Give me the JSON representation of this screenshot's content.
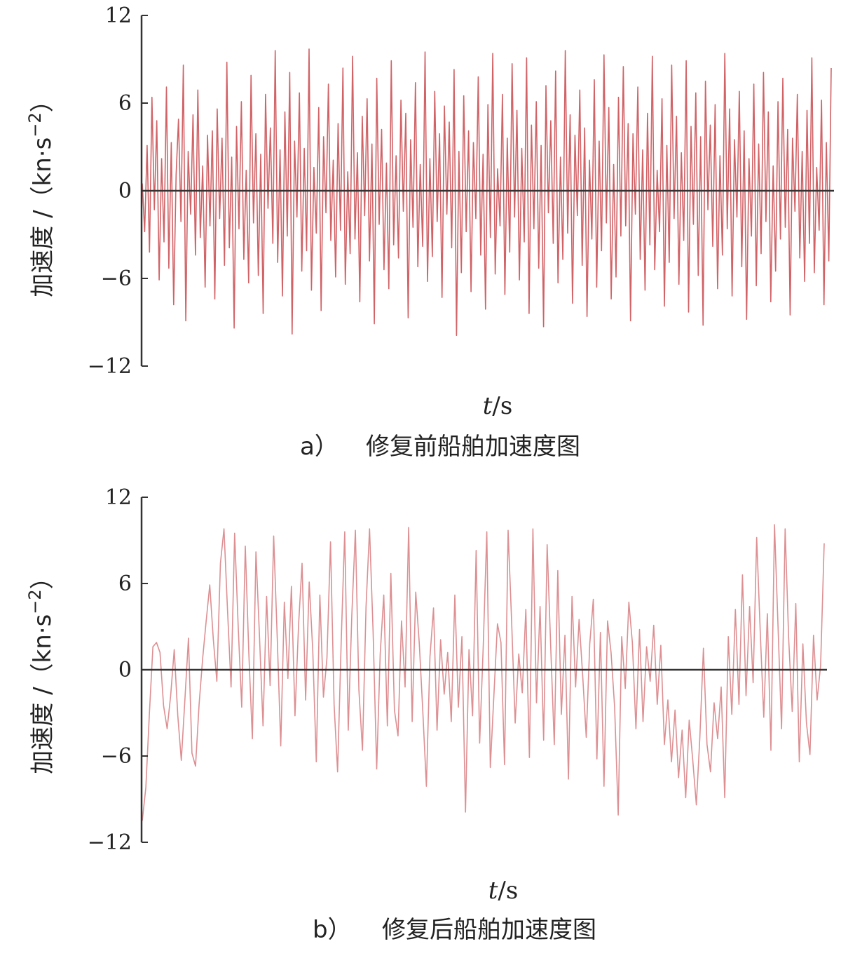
{
  "chart_data": [
    {
      "type": "line",
      "caption_letter": "a）",
      "caption_text": "修复前船舶加速度图",
      "ylabel_main": "加速度 /（kn·s",
      "ylabel_exp": "−2",
      "ylabel_close": "）",
      "xlabel_var": "t",
      "xlabel_unit": "/s",
      "ylim": [
        -12,
        12
      ],
      "yticks": [
        12,
        6,
        0,
        -6,
        -12
      ],
      "ytick_labels": [
        "12",
        "6",
        "0",
        "−6",
        "−12"
      ],
      "series": [
        {
          "color": "#c9474b",
          "style": "dense-noise",
          "x_range": [
            0,
            200
          ],
          "values": [
            0.5,
            -2.8,
            3.1,
            -4.2,
            6.4,
            -1.3,
            4.8,
            -6.1,
            2.2,
            -3.5,
            7.1,
            -5.3,
            3.3,
            -7.8,
            1.1,
            4.9,
            -2.1,
            8.6,
            -8.9,
            2.7,
            -1.6,
            5.2,
            -4.4,
            6.9,
            -3.2,
            1.7,
            -6.6,
            3.8,
            -2.4,
            4.1,
            -7.4,
            5.6,
            -1.9,
            3.6,
            -5.1,
            8.8,
            -3.9,
            2.3,
            -9.4,
            4.4,
            -2.6,
            6.1,
            -4.7,
            1.4,
            -6.3,
            7.9,
            -2.2,
            3.9,
            -5.8,
            2.5,
            -8.4,
            6.6,
            -1.2,
            4.3,
            -3.6,
            9.6,
            -4.9,
            2.8,
            -7.2,
            5.4,
            -3.1,
            8.1,
            -9.8,
            3.4,
            -1.8,
            6.7,
            -5.5,
            2.9,
            -4.1,
            9.7,
            -6.8,
            1.6,
            -2.9,
            5.7,
            -8.2,
            3.7,
            -1.5,
            7.3,
            -3.4,
            2.1,
            -5.9,
            4.6,
            -2.7,
            8.4,
            -6.4,
            1.3,
            -4.3,
            9.2,
            -3.3,
            2.6,
            -7.6,
            5.1,
            -1.7,
            6.3,
            -4.8,
            3.2,
            -9.1,
            7.7,
            -2.3,
            4.2,
            -5.4,
            1.9,
            -6.7,
            8.9,
            -3.7,
            2.4,
            -4.6,
            6.2,
            -1.4,
            5.3,
            -8.7,
            3.5,
            -2.5,
            7.4,
            -5.2,
            1.8,
            -3.8,
            9.5,
            -6.2,
            2.2,
            -4.5,
            6.8,
            -2.1,
            3.9,
            -7.3,
            5.8,
            -1.6,
            4.7,
            -3.9,
            8.3,
            -9.9,
            2.7,
            -5.6,
            6.5,
            -2.8,
            4.1,
            -6.9,
            3.3,
            -1.9,
            7.8,
            -4.4,
            2.5,
            -8.1,
            5.9,
            -3.2,
            9.4,
            -5.7,
            1.5,
            -2.4,
            6.6,
            -7.1,
            3.6,
            -4.2,
            8.7,
            -1.8,
            5.5,
            -6.1,
            2.9,
            -3.5,
            9.1,
            -8.4,
            4.5,
            -2.6,
            6.1,
            -5.3,
            3.1,
            -9.3,
            7.2,
            -1.5,
            4.8,
            -3.6,
            8.2,
            -6.3,
            2.3,
            -4.7,
            9.6,
            -2.9,
            5.2,
            -7.7,
            3.8,
            -1.7,
            6.9,
            -5.1,
            4.3,
            -8.6,
            2.1,
            -3.3,
            7.6,
            -6.6,
            3.4,
            -4.1,
            9.3,
            -2.2,
            5.7,
            -7.4,
            1.8,
            -5.9,
            6.4,
            -3.1,
            8.5,
            -2.4,
            4.6,
            -8.9,
            3.9,
            -1.6,
            7.1,
            -4.7,
            2.8,
            -6.8,
            5.3,
            -3.7,
            9.2,
            -5.4,
            1.4,
            -2.8,
            6.3,
            -7.9,
            3.1,
            -4.9,
            8.6,
            -1.9,
            5.1,
            -6.4,
            2.6,
            -3.4,
            8.9,
            -8.3,
            4.4,
            -2.3,
            6.7,
            -5.8,
            3.7,
            -9.2,
            7.5,
            -1.3,
            4.5,
            -3.8,
            5.9,
            -6.7,
            2.4,
            -4.4,
            9.4,
            -2.6,
            5.6,
            -7.2,
            3.5,
            -1.8,
            6.8,
            -5.2,
            4.1,
            -8.8,
            2.2,
            -3.1,
            7.3,
            -6.5,
            3.2,
            -4.3,
            8.1,
            -2.1,
            5.4,
            -7.6,
            1.7,
            -5.5,
            6.1,
            -3.3,
            7.7,
            -2.5,
            4.2,
            -8.5,
            3.6,
            -1.4,
            6.6,
            -4.6,
            2.7,
            -6.2,
            5.5,
            -3.6,
            9.1,
            -5.6,
            1.6,
            -2.7,
            6.2,
            -7.8,
            3.3,
            -4.8,
            8.4
          ]
        }
      ]
    },
    {
      "type": "line",
      "caption_letter": "b）",
      "caption_text": "修复后船舶加速度图",
      "ylabel_main": "加速度 /（kn·s",
      "ylabel_exp": "−2",
      "ylabel_close": "）",
      "xlabel_var": "t",
      "xlabel_unit": "/s",
      "ylim": [
        -12,
        12
      ],
      "yticks": [
        12,
        6,
        0,
        -6,
        -12
      ],
      "ytick_labels": [
        "12",
        "6",
        "0",
        "−6",
        "−12"
      ],
      "series": [
        {
          "color": "#d16a6e",
          "style": "smooth-oscillation",
          "x_range": [
            0,
            200
          ],
          "values": [
            -10.5,
            -8.2,
            -3.1,
            1.6,
            1.9,
            1.2,
            -2.5,
            -4.1,
            -1.8,
            1.4,
            -3.2,
            -6.3,
            -2.1,
            2.2,
            -5.8,
            -6.7,
            -2.4,
            0.8,
            3.4,
            5.9,
            2.1,
            -0.8,
            7.4,
            9.8,
            4.2,
            -1.2,
            9.5,
            3.1,
            -2.6,
            8.6,
            1.2,
            -4.8,
            8.2,
            2.4,
            -3.9,
            5.1,
            -1.1,
            9.3,
            2.2,
            -5.3,
            4.7,
            -0.6,
            5.8,
            -3.2,
            3.1,
            7.4,
            -2.1,
            6.1,
            1.3,
            -6.4,
            5.2,
            -1.9,
            0.8,
            8.9,
            -2.4,
            -7.1,
            1.9,
            9.6,
            -4.2,
            3.8,
            9.7,
            -1.4,
            -5.6,
            4.4,
            9.8,
            2.6,
            -6.9,
            1.1,
            5.2,
            -3.9,
            6.7,
            -2.8,
            -4.6,
            3.4,
            -1.2,
            9.9,
            -3.6,
            5.4,
            1.8,
            -2.9,
            -8.1,
            0.9,
            4.3,
            -4.2,
            2.1,
            -1.7,
            1.2,
            -3.6,
            5.2,
            -2.6,
            2.3,
            -9.9,
            1.4,
            -3.2,
            8.3,
            -5.1,
            1.6,
            9.6,
            -6.8,
            -1.8,
            3.2,
            1.9,
            -6.6,
            9.7,
            3.4,
            -3.7,
            1.1,
            -1.6,
            4.2,
            -6.1,
            9.8,
            -2.3,
            4.4,
            -4.9,
            8.7,
            1.6,
            -5.2,
            6.9,
            -3.1,
            2.4,
            -7.6,
            5.1,
            -1.2,
            3.5,
            -0.4,
            -4.7,
            1.8,
            4.9,
            -6.2,
            2.6,
            -8.1,
            3.4,
            1.2,
            -2.6,
            -10.1,
            2.3,
            -1.3,
            4.7,
            1.9,
            -4.1,
            2.8,
            -3.6,
            1.6,
            -0.8,
            3.1,
            -2.4,
            1.7,
            -5.2,
            -2.1,
            -6.4,
            -2.8,
            -7.5,
            -4.2,
            -8.9,
            -3.5,
            -6.3,
            -9.4,
            -4.7,
            1.5,
            -5.2,
            -7.1,
            -2.3,
            -4.8,
            -1.2,
            -8.9,
            2.3,
            -3.1,
            4.2,
            -2.4,
            6.6,
            -1.8,
            4.4,
            -0.9,
            9.2,
            2.6,
            -3.3,
            3.9,
            -5.6,
            10.1,
            3.1,
            -4.1,
            9.8,
            2.2,
            -2.9,
            4.6,
            -6.4,
            1.8,
            -3.7,
            -5.9,
            2.4,
            -2.1,
            0.3,
            8.8
          ]
        }
      ]
    }
  ]
}
